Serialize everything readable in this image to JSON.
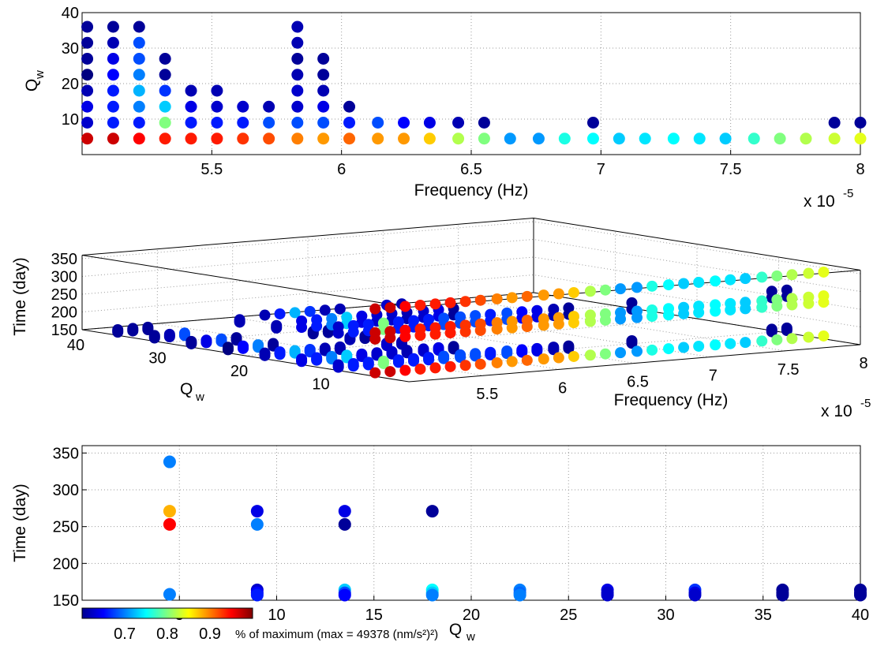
{
  "colors": {
    "axis": "#000000",
    "grid": "#9a9a9a",
    "background": "#ffffff",
    "colormap": "jet"
  },
  "chart_data": [
    {
      "type": "scatter",
      "panel": "top",
      "xlabel": "Frequency (Hz)",
      "ylabel_main": "Q",
      "ylabel_sub": "w",
      "x_multiplier_text": "x 10",
      "x_multiplier_exp": "-5",
      "xlim": [
        5.0,
        8.0
      ],
      "ylim": [
        0,
        40
      ],
      "xticks": [
        5.5,
        6,
        6.5,
        7,
        7.5,
        8
      ],
      "xtick_labels": [
        "5.5",
        "6",
        "6.5",
        "7",
        "7.5",
        "8"
      ],
      "yticks": [
        10,
        20,
        30,
        40
      ],
      "ytick_labels": [
        "10",
        "20",
        "30",
        "40"
      ],
      "grid": true,
      "points": [
        [
          5.02,
          4.5,
          0.97
        ],
        [
          5.02,
          9,
          0.63
        ],
        [
          5.02,
          13.5,
          0.64
        ],
        [
          5.02,
          18,
          0.62
        ],
        [
          5.02,
          22.5,
          0.6
        ],
        [
          5.02,
          27,
          0.61
        ],
        [
          5.02,
          31.5,
          0.61
        ],
        [
          5.02,
          36,
          0.61
        ],
        [
          5.12,
          4.5,
          0.97
        ],
        [
          5.12,
          9,
          0.66
        ],
        [
          5.12,
          13.5,
          0.66
        ],
        [
          5.12,
          18,
          0.66
        ],
        [
          5.12,
          22.5,
          0.65
        ],
        [
          5.12,
          27,
          0.64
        ],
        [
          5.12,
          31.5,
          0.62
        ],
        [
          5.12,
          36,
          0.61
        ],
        [
          5.22,
          4.5,
          0.95
        ],
        [
          5.22,
          9,
          0.66
        ],
        [
          5.22,
          13.5,
          0.7
        ],
        [
          5.22,
          18,
          0.72
        ],
        [
          5.22,
          22.5,
          0.7
        ],
        [
          5.22,
          27,
          0.68
        ],
        [
          5.22,
          31.5,
          0.68
        ],
        [
          5.22,
          36,
          0.61
        ],
        [
          5.32,
          4.5,
          0.94
        ],
        [
          5.32,
          9,
          0.8
        ],
        [
          5.32,
          13.5,
          0.73
        ],
        [
          5.32,
          18,
          0.67
        ],
        [
          5.32,
          22.5,
          0.61
        ],
        [
          5.32,
          27,
          0.61
        ],
        [
          5.42,
          4.5,
          0.94
        ],
        [
          5.42,
          9,
          0.66
        ],
        [
          5.42,
          13.5,
          0.64
        ],
        [
          5.42,
          18,
          0.62
        ],
        [
          5.52,
          4.5,
          0.94
        ],
        [
          5.52,
          9,
          0.66
        ],
        [
          5.52,
          13.5,
          0.63
        ],
        [
          5.52,
          18,
          0.62
        ],
        [
          5.62,
          4.5,
          0.93
        ],
        [
          5.62,
          9,
          0.66
        ],
        [
          5.62,
          13.5,
          0.63
        ],
        [
          5.72,
          4.5,
          0.92
        ],
        [
          5.72,
          9,
          0.68
        ],
        [
          5.72,
          13.5,
          0.62
        ],
        [
          5.83,
          4.5,
          0.9
        ],
        [
          5.83,
          9,
          0.68
        ],
        [
          5.83,
          13.5,
          0.63
        ],
        [
          5.83,
          18,
          0.63
        ],
        [
          5.83,
          22.5,
          0.62
        ],
        [
          5.83,
          27,
          0.61
        ],
        [
          5.83,
          31.5,
          0.62
        ],
        [
          5.83,
          36,
          0.62
        ],
        [
          5.93,
          4.5,
          0.89
        ],
        [
          5.93,
          9,
          0.68
        ],
        [
          5.93,
          13.5,
          0.64
        ],
        [
          5.93,
          18,
          0.62
        ],
        [
          5.93,
          22.5,
          0.61
        ],
        [
          5.93,
          27,
          0.61
        ],
        [
          6.03,
          4.5,
          0.91
        ],
        [
          6.03,
          9,
          0.66
        ],
        [
          6.03,
          13.5,
          0.61
        ],
        [
          6.14,
          4.5,
          0.89
        ],
        [
          6.14,
          9,
          0.68
        ],
        [
          6.24,
          4.5,
          0.89
        ],
        [
          6.24,
          9,
          0.65
        ],
        [
          6.34,
          4.5,
          0.87
        ],
        [
          6.34,
          9,
          0.64
        ],
        [
          6.45,
          4.5,
          0.82
        ],
        [
          6.45,
          9,
          0.62
        ],
        [
          6.55,
          4.5,
          0.8
        ],
        [
          6.55,
          9,
          0.61
        ],
        [
          6.65,
          4.5,
          0.71
        ],
        [
          6.76,
          4.5,
          0.71
        ],
        [
          6.86,
          4.5,
          0.76
        ],
        [
          6.97,
          4.5,
          0.75
        ],
        [
          6.97,
          9,
          0.61
        ],
        [
          7.07,
          4.5,
          0.73
        ],
        [
          7.17,
          4.5,
          0.74
        ],
        [
          7.28,
          4.5,
          0.75
        ],
        [
          7.38,
          4.5,
          0.74
        ],
        [
          7.48,
          4.5,
          0.73
        ],
        [
          7.59,
          4.5,
          0.77
        ],
        [
          7.69,
          4.5,
          0.8
        ],
        [
          7.79,
          4.5,
          0.82
        ],
        [
          7.9,
          4.5,
          0.83
        ],
        [
          7.9,
          9,
          0.61
        ],
        [
          8.0,
          4.5,
          0.84
        ],
        [
          8.0,
          9,
          0.61
        ]
      ]
    },
    {
      "type": "scatter",
      "panel": "middle-3d",
      "xlabel": "Frequency (Hz)",
      "ylabel_main": "Q",
      "ylabel_sub": "w",
      "zlabel": "Time (day)",
      "x_multiplier_text": "x 10",
      "x_multiplier_exp": "-5",
      "xticks": [
        5.5,
        6,
        6.5,
        7,
        7.5,
        8
      ],
      "xtick_labels": [
        "5.5",
        "6",
        "6.5",
        "7",
        "7.5",
        "8"
      ],
      "yticks": [
        10,
        20,
        30,
        40
      ],
      "ytick_labels": [
        "10",
        "20",
        "30",
        "40"
      ],
      "zticks": [
        150,
        200,
        250,
        300,
        350
      ],
      "ztick_labels": [
        "150",
        "200",
        "250",
        "300",
        "350"
      ],
      "zlim": [
        150,
        360
      ],
      "grid": true
    },
    {
      "type": "scatter",
      "panel": "bottom",
      "xlabel_main": "Q",
      "xlabel_sub": "w",
      "ylabel": "Time (day)",
      "xlim": [
        0,
        40
      ],
      "ylim": [
        150,
        360
      ],
      "xticks": [
        5,
        10,
        15,
        20,
        25,
        30,
        35,
        40
      ],
      "xtick_labels": [
        "5",
        "10",
        "15",
        "20",
        "25",
        "30",
        "35",
        "40"
      ],
      "yticks": [
        150,
        200,
        250,
        300,
        350
      ],
      "ytick_labels": [
        "150",
        "200",
        "250",
        "300",
        "350"
      ],
      "grid": true,
      "points": [
        [
          4.5,
          338,
          0.7
        ],
        [
          4.5,
          271,
          0.88
        ],
        [
          4.5,
          253,
          0.95
        ],
        [
          4.5,
          158,
          0.7
        ],
        [
          9,
          271,
          0.64
        ],
        [
          9,
          253,
          0.7
        ],
        [
          9,
          164,
          0.63
        ],
        [
          9,
          160,
          0.65
        ],
        [
          9,
          157,
          0.66
        ],
        [
          13.5,
          271,
          0.64
        ],
        [
          13.5,
          253,
          0.61
        ],
        [
          13.5,
          164,
          0.73
        ],
        [
          13.5,
          160,
          0.68
        ],
        [
          13.5,
          157,
          0.65
        ],
        [
          18,
          271,
          0.61
        ],
        [
          18,
          164,
          0.75
        ],
        [
          18,
          160,
          0.73
        ],
        [
          18,
          157,
          0.7
        ],
        [
          22.5,
          164,
          0.7
        ],
        [
          22.5,
          160,
          0.69
        ],
        [
          22.5,
          157,
          0.7
        ],
        [
          27,
          164,
          0.64
        ],
        [
          27,
          160,
          0.63
        ],
        [
          27,
          157,
          0.63
        ],
        [
          31.5,
          164,
          0.67
        ],
        [
          31.5,
          160,
          0.64
        ],
        [
          31.5,
          157,
          0.63
        ],
        [
          36,
          164,
          0.61
        ],
        [
          36,
          160,
          0.61
        ],
        [
          36,
          157,
          0.61
        ],
        [
          40,
          164,
          0.61
        ],
        [
          40,
          160,
          0.61
        ],
        [
          40,
          157,
          0.61
        ]
      ]
    },
    {
      "type": "colorbar",
      "range": [
        0.6,
        1.0
      ],
      "ticks": [
        0.7,
        0.8,
        0.9
      ],
      "tick_labels": [
        "0.7",
        "0.8",
        "0.9"
      ],
      "label": "% of maximum (max = 49378 (nm/s²)²)"
    }
  ]
}
